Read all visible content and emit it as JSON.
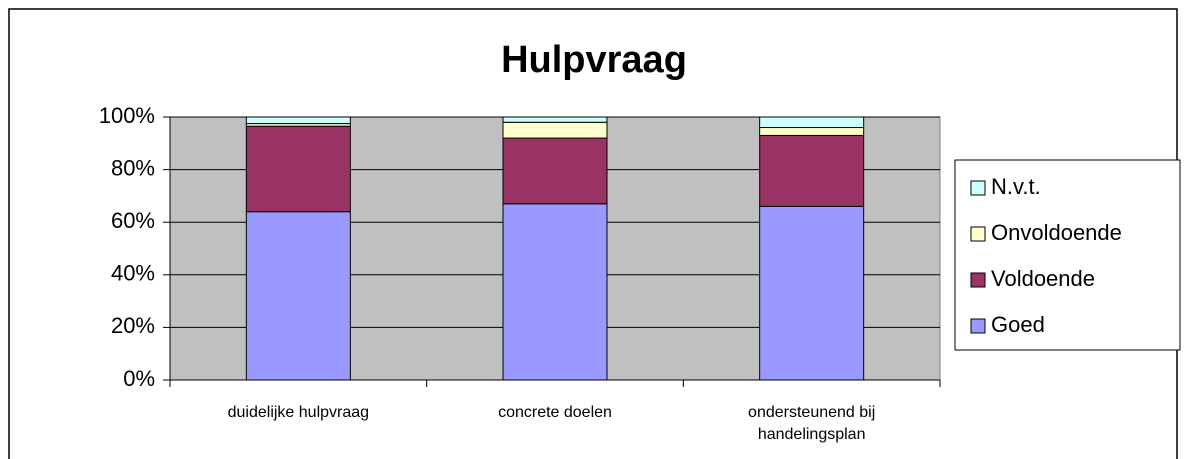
{
  "chart_data": {
    "type": "stacked_bar",
    "title": "Hulpvraag",
    "categories": [
      "duidelijke hulpvraag",
      "concrete doelen",
      "ondersteunend bij handelingsplan"
    ],
    "series": [
      {
        "name": "Goed",
        "color": "#9999ff",
        "values": [
          64,
          67,
          66
        ]
      },
      {
        "name": "Voldoende",
        "color": "#993366",
        "values": [
          32.5,
          25,
          27
        ]
      },
      {
        "name": "Onvoldoende",
        "color": "#ffffcc",
        "values": [
          1,
          6,
          3
        ]
      },
      {
        "name": "N.v.t.",
        "color": "#ccffff",
        "values": [
          2.5,
          2,
          4
        ]
      }
    ],
    "ylim": [
      0,
      100
    ],
    "yticks": [
      {
        "value": 0,
        "label": "0%"
      },
      {
        "value": 20,
        "label": "20%"
      },
      {
        "value": 40,
        "label": "40%"
      },
      {
        "value": 60,
        "label": "60%"
      },
      {
        "value": 80,
        "label": "80%"
      },
      {
        "value": 100,
        "label": "100%"
      }
    ],
    "grid": true,
    "legend": "right",
    "plot_background": "#c0c0c0"
  }
}
